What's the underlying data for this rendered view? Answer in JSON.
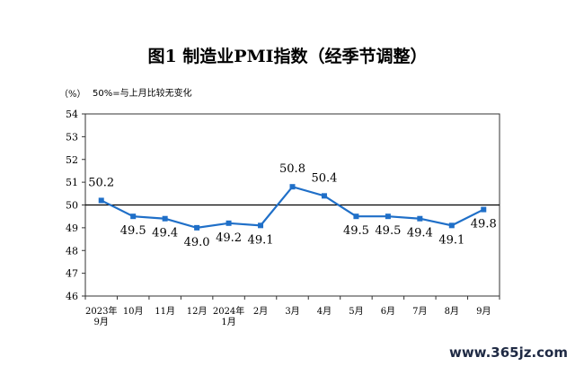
{
  "chart_data": {
    "type": "line",
    "title": "图1  制造业PMI指数（经季节调整）",
    "unit_label": "（%）",
    "reference_note": "50%=与上月比较无变化",
    "categories": [
      [
        "2023年",
        "9月"
      ],
      [
        "10月"
      ],
      [
        "11月"
      ],
      [
        "12月"
      ],
      [
        "2024年",
        "1月"
      ],
      [
        "2月"
      ],
      [
        "3月"
      ],
      [
        "4月"
      ],
      [
        "5月"
      ],
      [
        "6月"
      ],
      [
        "7月"
      ],
      [
        "8月"
      ],
      [
        "9月"
      ]
    ],
    "series": [
      {
        "values": [
          50.2,
          49.5,
          49.4,
          49.0,
          49.2,
          49.1,
          50.8,
          50.4,
          49.5,
          49.5,
          49.4,
          49.1,
          49.8
        ]
      }
    ],
    "data_labels": [
      "50.2",
      "49.5",
      "49.4",
      "49.0",
      "49.2",
      "49.1",
      "50.8",
      "50.4",
      "49.5",
      "49.5",
      "49.4",
      "49.1",
      "49.8"
    ],
    "yticks": [
      46,
      47,
      48,
      49,
      50,
      51,
      52,
      53,
      54
    ],
    "ylim": [
      46,
      54
    ],
    "reference_line": 50,
    "grid": false,
    "line_color": "#1f6fc8",
    "marker_color": "#1f6fc8"
  },
  "watermark": "www.365jz.com"
}
